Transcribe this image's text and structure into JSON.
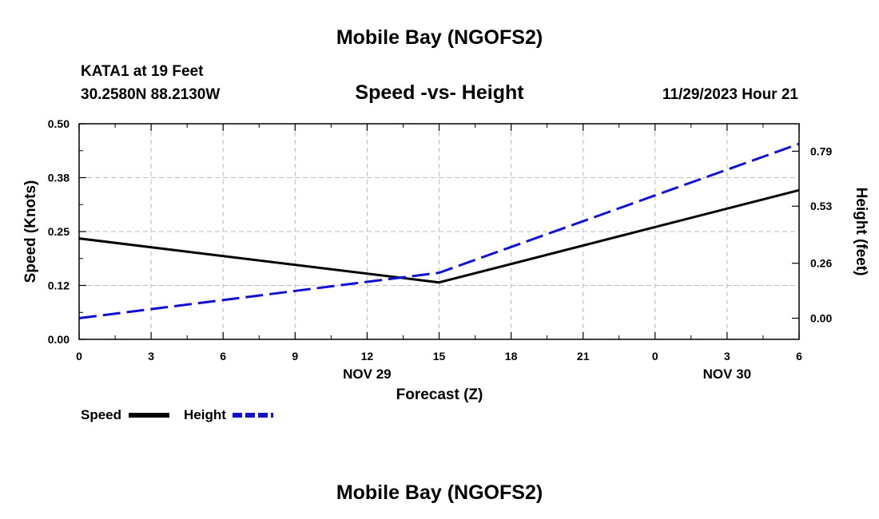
{
  "page": {
    "title": "Mobile Bay (NGOFS2)",
    "footer_title": "Mobile Bay (NGOFS2)"
  },
  "chart_data": {
    "type": "line",
    "title": "Speed -vs- Height",
    "station": "KATA1 at 19 Feet",
    "location": "30.2580N  88.2130W",
    "timestamp": "11/29/2023 Hour 21",
    "xlabel": "Forecast (Z)",
    "ylabel": "Speed (Knots)",
    "y2label": "Height (feet)",
    "x_ticks": [
      "0",
      "3",
      "6",
      "9",
      "12",
      "15",
      "18",
      "21",
      "0",
      "3",
      "6"
    ],
    "x_date_labels": [
      {
        "tick_index": 4,
        "label": "NOV 29"
      },
      {
        "tick_index": 9,
        "label": "NOV 30"
      }
    ],
    "xlim": [
      0,
      30
    ],
    "ylim": [
      0,
      0.5
    ],
    "y_ticks": [
      "0.00",
      "0.12",
      "0.25",
      "0.38",
      "0.50"
    ],
    "y2lim": [
      -0.1,
      0.92
    ],
    "y2_ticks": [
      "0.00",
      "0.26",
      "0.53",
      "0.79"
    ],
    "grid": true,
    "legend_position": "bottom-left",
    "series": [
      {
        "name": "Speed",
        "axis": "left",
        "color": "#000000",
        "dash": "solid",
        "x": [
          0,
          15,
          30
        ],
        "values": [
          0.234,
          0.132,
          0.346
        ]
      },
      {
        "name": "Height",
        "axis": "right",
        "color": "#1010d0",
        "dash": "dashed",
        "x": [
          0,
          15,
          30
        ],
        "values": [
          0.0,
          0.215,
          0.825
        ]
      }
    ]
  }
}
